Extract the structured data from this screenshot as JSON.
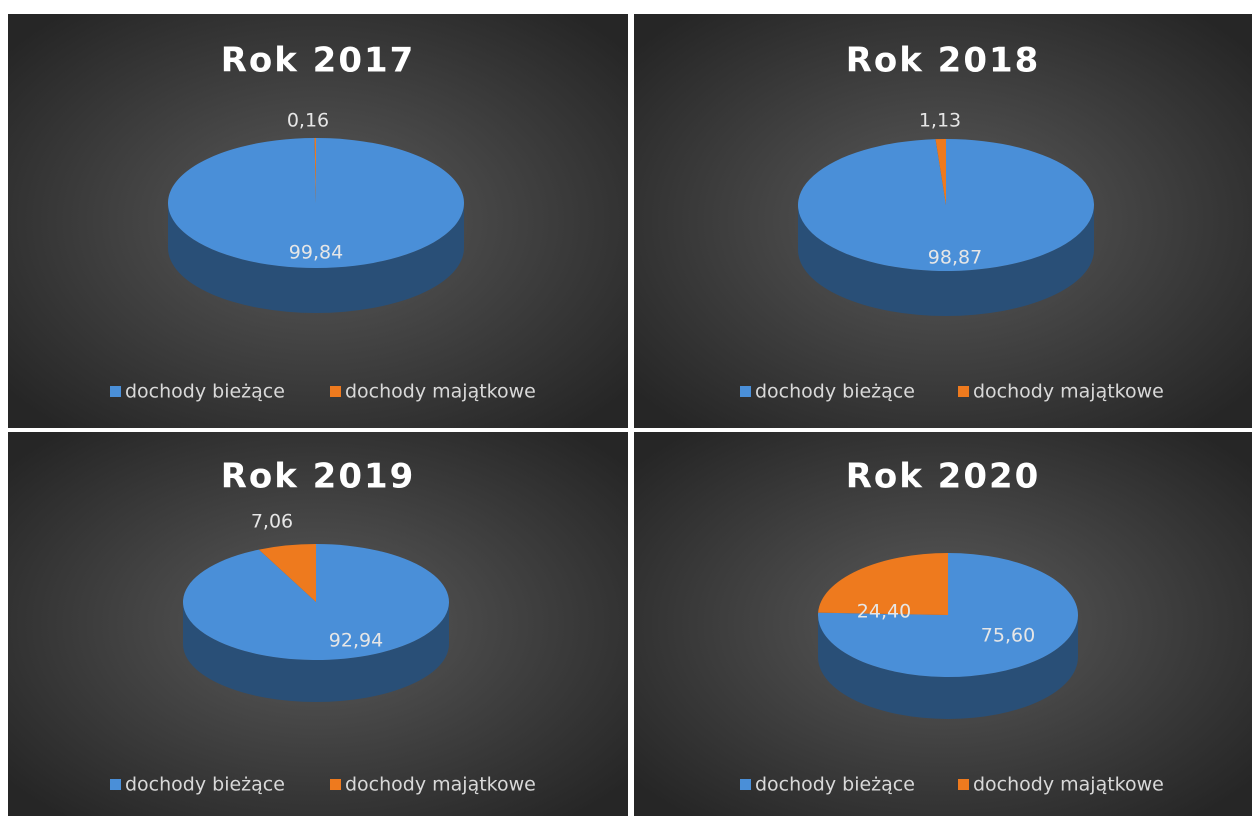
{
  "chart_data": [
    {
      "type": "pie",
      "title": "Rok 2017",
      "categories": [
        "dochody bieżące",
        "dochody majątkowe"
      ],
      "values": [
        99.84,
        0.16
      ],
      "value_labels": [
        "99,84",
        "0,16"
      ],
      "colors": [
        "#4a8fd8",
        "#ee7a1e"
      ],
      "legend": "bottom"
    },
    {
      "type": "pie",
      "title": "Rok 2018",
      "categories": [
        "dochody bieżące",
        "dochody majątkowe"
      ],
      "values": [
        98.87,
        1.13
      ],
      "value_labels": [
        "98,87",
        "1,13"
      ],
      "colors": [
        "#4a8fd8",
        "#ee7a1e"
      ],
      "legend": "bottom"
    },
    {
      "type": "pie",
      "title": "Rok 2019",
      "categories": [
        "dochody bieżące",
        "dochody majątkowe"
      ],
      "values": [
        92.94,
        7.06
      ],
      "value_labels": [
        "92,94",
        "7,06"
      ],
      "colors": [
        "#4a8fd8",
        "#ee7a1e"
      ],
      "legend": "bottom"
    },
    {
      "type": "pie",
      "title": "Rok 2020",
      "categories": [
        "dochody bieżące",
        "dochody majątkowe"
      ],
      "values": [
        75.6,
        24.4
      ],
      "value_labels": [
        "75,60",
        "24,40"
      ],
      "colors": [
        "#4a8fd8",
        "#ee7a1e"
      ],
      "legend": "bottom"
    }
  ]
}
